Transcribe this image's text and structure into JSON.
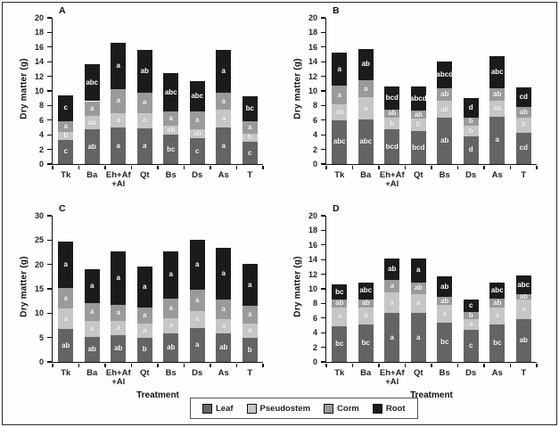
{
  "figure": {
    "ylabel": "Dry matter (g)",
    "xlabel": "Treatment",
    "legend": {
      "position": "bottom-center",
      "items": [
        {
          "label": "Leaf",
          "color": "#646464"
        },
        {
          "label": "Pseudostem",
          "color": "#c6c6c6"
        },
        {
          "label": "Corm",
          "color": "#9a9a9a"
        },
        {
          "label": "Root",
          "color": "#1b1b1b"
        }
      ]
    }
  },
  "chart_data": [
    {
      "panel": "A",
      "type": "bar",
      "stacked": true,
      "ylabel": "Dry matter (g)",
      "xlabel": "",
      "ylim": [
        0,
        20
      ],
      "ytick_step": 2,
      "grid": false,
      "categories": [
        "Tk",
        "Ba",
        "Eh+Af\n+Al",
        "Qt",
        "Bs",
        "Ds",
        "As",
        "T"
      ],
      "series": [
        {
          "name": "Leaf",
          "color": "#646464",
          "values": [
            3.3,
            4.7,
            5.0,
            4.9,
            4.0,
            3.5,
            5.0,
            3.0
          ],
          "sig_labels": [
            "c",
            "ab",
            "a",
            "a",
            "bc",
            "c",
            "a",
            "c"
          ]
        },
        {
          "name": "Pseudostem",
          "color": "#c6c6c6",
          "values": [
            1.1,
            1.9,
            2.0,
            2.1,
            1.2,
            1.3,
            2.4,
            1.2
          ],
          "sig_labels": [
            "b",
            "ab",
            "a",
            "a",
            "ab",
            "ab",
            "a",
            "b"
          ]
        },
        {
          "name": "Corm",
          "color": "#9a9a9a",
          "values": [
            1.5,
            2.0,
            3.3,
            2.8,
            2.0,
            2.4,
            2.3,
            1.6
          ],
          "sig_labels": [
            "a",
            "a",
            "a",
            "a",
            "a",
            "a",
            "a",
            "a"
          ]
        },
        {
          "name": "Root",
          "color": "#1b1b1b",
          "values": [
            3.5,
            5.1,
            6.3,
            5.8,
            5.2,
            4.1,
            5.9,
            3.5
          ],
          "sig_labels": [
            "c",
            "abc",
            "a",
            "ab",
            "abc",
            "abc",
            "a",
            "bc"
          ]
        }
      ],
      "totals": [
        9.4,
        13.7,
        16.6,
        15.6,
        12.4,
        11.3,
        15.6,
        9.3
      ]
    },
    {
      "panel": "B",
      "type": "bar",
      "stacked": true,
      "ylabel": "Dry matter (g)",
      "xlabel": "",
      "ylim": [
        0,
        20
      ],
      "ytick_step": 2,
      "grid": false,
      "categories": [
        "Tk",
        "Ba",
        "Eh+Af\n+Al",
        "Qt",
        "Bs",
        "Ds",
        "As",
        "T"
      ],
      "series": [
        {
          "name": "Leaf",
          "color": "#646464",
          "values": [
            6.0,
            6.1,
            4.7,
            4.5,
            6.3,
            3.8,
            6.5,
            4.3
          ],
          "sig_labels": [
            "abc",
            "abc",
            "bcd",
            "bcd",
            "ab",
            "d",
            "a",
            "cd"
          ]
        },
        {
          "name": "Pseudostem",
          "color": "#c6c6c6",
          "values": [
            2.2,
            3.0,
            1.6,
            1.7,
            2.4,
            1.4,
            2.1,
            2.1
          ],
          "sig_labels": [
            "ab",
            "a",
            "b",
            "b",
            "ab",
            "b",
            "ab",
            "b"
          ]
        },
        {
          "name": "Corm",
          "color": "#9a9a9a",
          "values": [
            2.5,
            2.4,
            1.2,
            1.1,
            1.7,
            1.2,
            1.8,
            1.4
          ],
          "sig_labels": [
            "a",
            "a",
            "ab",
            "ab",
            "ab",
            "b",
            "ab",
            "ab"
          ]
        },
        {
          "name": "Root",
          "color": "#1b1b1b",
          "values": [
            4.5,
            4.2,
            3.1,
            3.3,
            3.6,
            2.6,
            4.3,
            2.7
          ],
          "sig_labels": [
            "a",
            "ab",
            "bcd",
            "abcd",
            "abcd",
            "d",
            "abc",
            "cd"
          ]
        }
      ],
      "totals": [
        15.2,
        15.7,
        10.6,
        10.6,
        14.0,
        9.0,
        14.7,
        10.5
      ]
    },
    {
      "panel": "C",
      "type": "bar",
      "stacked": true,
      "ylabel": "Dry matter (g)",
      "xlabel": "Treatment",
      "ylim": [
        0,
        30
      ],
      "ytick_step": 5,
      "grid": false,
      "categories": [
        "Tk",
        "Ba",
        "Eh+Af\n+Al",
        "Qt",
        "Bs",
        "Ds",
        "As",
        "T"
      ],
      "series": [
        {
          "name": "Leaf",
          "color": "#646464",
          "values": [
            6.7,
            5.2,
            5.5,
            5.0,
            5.9,
            7.0,
            5.8,
            4.9
          ],
          "sig_labels": [
            "ab",
            "ab",
            "ab",
            "b",
            "ab",
            "a",
            "ab",
            "b"
          ]
        },
        {
          "name": "Pseudostem",
          "color": "#c6c6c6",
          "values": [
            4.3,
            3.2,
            3.0,
            2.8,
            3.1,
            3.5,
            3.0,
            2.9
          ],
          "sig_labels": [
            "a",
            "a",
            "a",
            "a",
            "a",
            "a",
            "a",
            "a"
          ]
        },
        {
          "name": "Corm",
          "color": "#9a9a9a",
          "values": [
            4.1,
            3.6,
            3.3,
            3.3,
            4.0,
            4.4,
            4.0,
            3.7
          ],
          "sig_labels": [
            "a",
            "a",
            "a",
            "a",
            "a",
            "a",
            "a",
            "a"
          ]
        },
        {
          "name": "Root",
          "color": "#1b1b1b",
          "values": [
            9.6,
            7.0,
            10.9,
            8.4,
            9.7,
            10.2,
            10.6,
            8.6
          ],
          "sig_labels": [
            "a",
            "a",
            "a",
            "a",
            "a",
            "a",
            "a",
            "a"
          ]
        }
      ],
      "totals": [
        24.7,
        19.0,
        22.7,
        19.5,
        22.7,
        25.1,
        23.4,
        20.1
      ]
    },
    {
      "panel": "D",
      "type": "bar",
      "stacked": true,
      "ylabel": "Dry matter (g)",
      "xlabel": "Treatment",
      "ylim": [
        0,
        20
      ],
      "ytick_step": 2,
      "grid": false,
      "categories": [
        "Tk",
        "Ba",
        "Eh+Af\n+Al",
        "Qt",
        "Bs",
        "Ds",
        "As",
        "T"
      ],
      "series": [
        {
          "name": "Leaf",
          "color": "#646464",
          "values": [
            4.9,
            5.1,
            6.7,
            6.7,
            5.4,
            4.4,
            5.1,
            5.9
          ],
          "sig_labels": [
            "bc",
            "bc",
            "a",
            "a",
            "bc",
            "c",
            "bc",
            "ab"
          ]
        },
        {
          "name": "Pseudostem",
          "color": "#c6c6c6",
          "values": [
            2.6,
            2.4,
            2.8,
            2.6,
            2.4,
            1.5,
            2.4,
            2.6
          ],
          "sig_labels": [
            "a",
            "a",
            "a",
            "a",
            "a",
            "a",
            "a",
            "a"
          ]
        },
        {
          "name": "Corm",
          "color": "#9a9a9a",
          "values": [
            1.0,
            1.0,
            1.7,
            1.6,
            1.1,
            0.9,
            1.1,
            0.8
          ],
          "sig_labels": [
            "ab",
            "ab",
            "a",
            "ab",
            "ab",
            "b",
            "ab",
            "ab"
          ]
        },
        {
          "name": "Root",
          "color": "#1b1b1b",
          "values": [
            2.1,
            2.4,
            3.0,
            3.3,
            2.8,
            1.8,
            2.3,
            2.5
          ],
          "sig_labels": [
            "bc",
            "abc",
            "ab",
            "a",
            "ab",
            "c",
            "abc",
            "abc"
          ]
        }
      ],
      "totals": [
        10.6,
        10.9,
        14.2,
        14.2,
        11.7,
        8.6,
        10.9,
        11.8
      ]
    }
  ]
}
